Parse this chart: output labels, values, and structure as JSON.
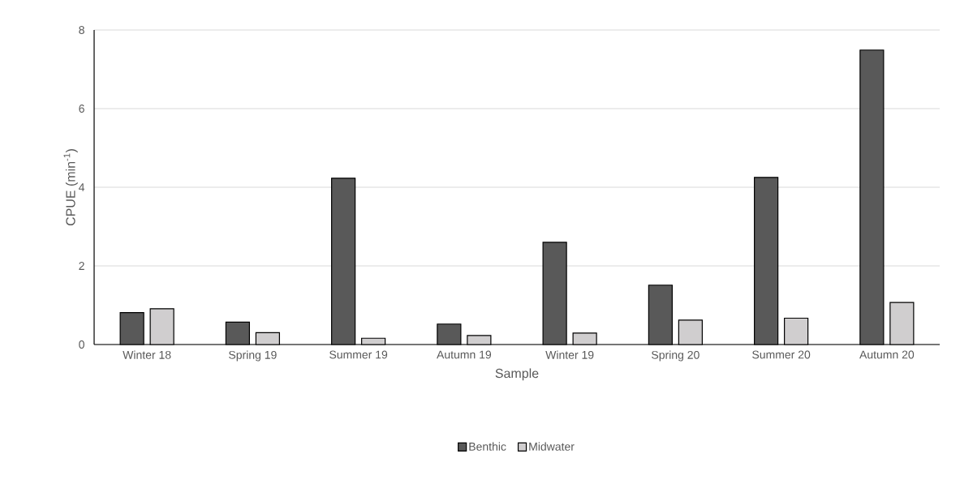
{
  "chart_data": {
    "type": "bar",
    "xlabel": "Sample",
    "ylabel": "CPUE (min$^{-1}$)",
    "categories": [
      "Winter 18",
      "Spring 19",
      "Summer 19",
      "Autumn 19",
      "Winter 19",
      "Spring 20",
      "Summer 20",
      "Autumn 20"
    ],
    "series": [
      {
        "name": "Benthic",
        "color": "#595959",
        "values": [
          0.81,
          0.57,
          4.23,
          0.52,
          2.6,
          1.51,
          4.25,
          7.49
        ]
      },
      {
        "name": "Midwater",
        "color": "#d0cecf",
        "values": [
          0.91,
          0.3,
          0.16,
          0.23,
          0.29,
          0.62,
          0.67,
          1.07
        ]
      }
    ],
    "ylim": [
      0,
      8
    ],
    "yticks": [
      0,
      2,
      4,
      6,
      8
    ],
    "grid": "y",
    "legend": "bottom"
  }
}
